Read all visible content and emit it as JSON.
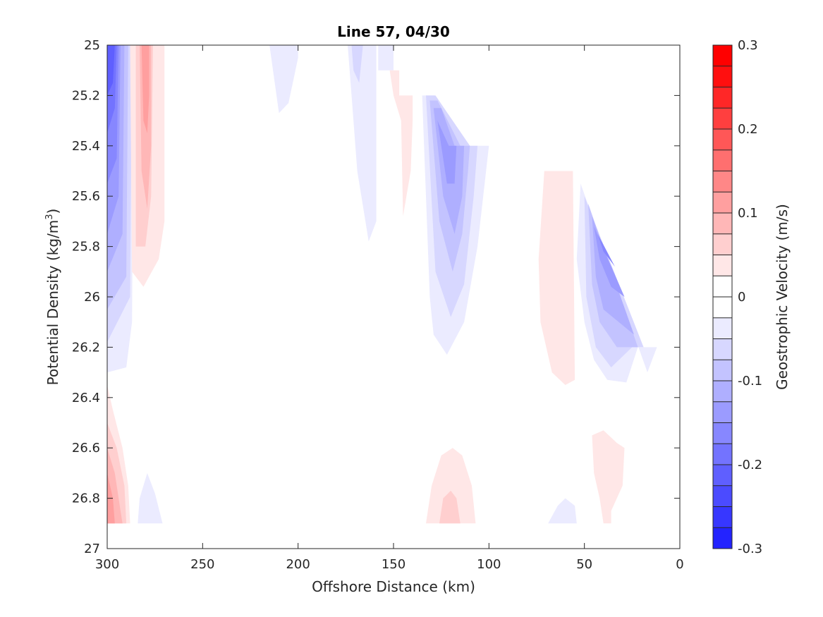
{
  "chart_data": {
    "type": "contour",
    "title": "Line 57, 04/30",
    "xlabel": "Offshore Distance (km)",
    "ylabel_main": "Potential Density (kg/m",
    "ylabel_sup": "3",
    "ylabel_end": ")",
    "xlim": [
      0,
      300
    ],
    "x_reversed": true,
    "ylim": [
      25,
      27
    ],
    "y_reversed": true,
    "xticks": [
      300,
      250,
      200,
      150,
      100,
      50,
      0
    ],
    "yticks": [
      25,
      25.2,
      25.4,
      25.6,
      25.8,
      26,
      26.2,
      26.4,
      26.6,
      26.8,
      27
    ],
    "colorbar": {
      "label": "Geostrophic Velocity (m/s)",
      "clim": [
        -0.3,
        0.3
      ],
      "step": 0.025,
      "ticks": [
        0.3,
        0.2,
        0.1,
        0,
        -0.1,
        -0.2,
        -0.3
      ],
      "tick_labels": [
        "0.3",
        "0.2",
        "0.1",
        "0",
        "-0.1",
        "-0.2",
        "-0.3"
      ]
    },
    "colormap": {
      "negative": "#0000ff",
      "zero": "#ffffff",
      "positive": "#ff0000"
    },
    "features": [
      {
        "name": "nearshore-jet-300km",
        "sign": -1,
        "levels": [
          [
            [
              300,
              25
            ],
            [
              286,
              25
            ],
            [
              287,
              26.1
            ],
            [
              290,
              26.28
            ],
            [
              300,
              26.3
            ]
          ],
          [
            [
              300,
              25
            ],
            [
              287,
              25
            ],
            [
              288,
              26.0
            ],
            [
              300,
              26.18
            ]
          ],
          [
            [
              300,
              25
            ],
            [
              289,
              25
            ],
            [
              290,
              25.92
            ],
            [
              300,
              26.05
            ]
          ],
          [
            [
              300,
              25
            ],
            [
              291,
              25
            ],
            [
              292,
              25.75
            ],
            [
              300,
              25.9
            ]
          ],
          [
            [
              300,
              25
            ],
            [
              293,
              25
            ],
            [
              294,
              25.6
            ],
            [
              300,
              25.75
            ]
          ],
          [
            [
              300,
              25
            ],
            [
              294,
              25
            ],
            [
              295,
              25.45
            ],
            [
              300,
              25.55
            ]
          ],
          [
            [
              300,
              25
            ],
            [
              295,
              25
            ],
            [
              296,
              25.25
            ],
            [
              300,
              25.35
            ]
          ],
          [
            [
              300,
              25
            ],
            [
              296,
              25
            ],
            [
              297,
              25.15
            ],
            [
              300,
              25.2
            ]
          ]
        ]
      },
      {
        "name": "counter-flow-280km",
        "sign": 1,
        "levels": [
          [
            [
              288,
              25
            ],
            [
              287,
              25.9
            ],
            [
              281,
              25.96
            ],
            [
              273,
              25.85
            ],
            [
              270,
              25.7
            ],
            [
              270,
              25
            ]
          ],
          [
            [
              285,
              25
            ],
            [
              285,
              25.8
            ],
            [
              280,
              25.8
            ],
            [
              277,
              25.6
            ],
            [
              276,
              25
            ]
          ],
          [
            [
              283,
              25
            ],
            [
              282,
              25.5
            ],
            [
              279,
              25.65
            ],
            [
              277,
              25.4
            ],
            [
              277,
              25
            ]
          ],
          [
            [
              282,
              25
            ],
            [
              281,
              25.3
            ],
            [
              279,
              25.35
            ],
            [
              278,
              25.2
            ],
            [
              278,
              25
            ]
          ]
        ]
      },
      {
        "name": "offshore-eddy-210km",
        "sign": -1,
        "levels": [
          [
            [
              215,
              25
            ],
            [
              210,
              25.27
            ],
            [
              205,
              25.23
            ],
            [
              200,
              25.05
            ],
            [
              200,
              25
            ]
          ]
        ]
      },
      {
        "name": "offshore-eddy-165km",
        "sign": -1,
        "levels": [
          [
            [
              174,
              25
            ],
            [
              172,
              25.2
            ],
            [
              169,
              25.5
            ],
            [
              163,
              25.78
            ],
            [
              159,
              25.7
            ],
            [
              159,
              25
            ],
            [
              150,
              25
            ],
            [
              150,
              25.1
            ],
            [
              158,
              25.1
            ],
            [
              158,
              25
            ]
          ],
          [
            [
              172,
              25
            ],
            [
              171,
              25.1
            ],
            [
              168,
              25.15
            ],
            [
              166,
              25
            ]
          ]
        ]
      },
      {
        "name": "small-positive-145km",
        "sign": 1,
        "levels": [
          [
            [
              152,
              25.1
            ],
            [
              150,
              25.2
            ],
            [
              146,
              25.3
            ],
            [
              145,
              25.68
            ],
            [
              141,
              25.5
            ],
            [
              140,
              25.3
            ],
            [
              140,
              25.2
            ],
            [
              147,
              25.2
            ],
            [
              147,
              25.1
            ]
          ]
        ]
      },
      {
        "name": "jet-120km",
        "sign": -1,
        "levels": [
          [
            [
              135,
              25.2
            ],
            [
              131,
              26.0
            ],
            [
              129,
              26.15
            ],
            [
              122,
              26.23
            ],
            [
              113,
              26.1
            ],
            [
              106,
              25.8
            ],
            [
              100,
              25.4
            ],
            [
              110,
              25.4
            ],
            [
              129,
              25.2
            ]
          ],
          [
            [
              133,
              25.2
            ],
            [
              128,
              25.9
            ],
            [
              120,
              26.08
            ],
            [
              113,
              25.95
            ],
            [
              108,
              25.6
            ],
            [
              106,
              25.4
            ],
            [
              110,
              25.4
            ],
            [
              128,
              25.2
            ]
          ],
          [
            [
              131,
              25.22
            ],
            [
              126,
              25.7
            ],
            [
              119,
              25.9
            ],
            [
              114,
              25.75
            ],
            [
              111,
              25.5
            ],
            [
              110,
              25.4
            ],
            [
              115,
              25.4
            ],
            [
              127,
              25.22
            ]
          ],
          [
            [
              129,
              25.25
            ],
            [
              124,
              25.6
            ],
            [
              118,
              25.75
            ],
            [
              114,
              25.6
            ],
            [
              113,
              25.4
            ],
            [
              118,
              25.4
            ],
            [
              125,
              25.25
            ]
          ],
          [
            [
              127,
              25.3
            ],
            [
              122,
              25.55
            ],
            [
              118,
              25.55
            ],
            [
              117,
              25.4
            ],
            [
              121,
              25.4
            ]
          ]
        ]
      },
      {
        "name": "positive-65km",
        "sign": 1,
        "levels": [
          [
            [
              71,
              25.5
            ],
            [
              74,
              25.85
            ],
            [
              73,
              26.1
            ],
            [
              67,
              26.3
            ],
            [
              60,
              26.35
            ],
            [
              55,
              26.33
            ],
            [
              56,
              25.5
            ]
          ]
        ]
      },
      {
        "name": "jet-35km",
        "sign": -1,
        "levels": [
          [
            [
              52,
              25.55
            ],
            [
              54,
              25.85
            ],
            [
              50,
              26.1
            ],
            [
              45,
              26.25
            ],
            [
              38,
              26.33
            ],
            [
              28,
              26.34
            ],
            [
              22,
              26.2
            ],
            [
              12,
              26.2
            ],
            [
              17,
              26.3
            ]
          ],
          [
            [
              50,
              25.6
            ],
            [
              49,
              26.0
            ],
            [
              44,
              26.2
            ],
            [
              36,
              26.28
            ],
            [
              25,
              26.2
            ],
            [
              19,
              26.2
            ]
          ],
          [
            [
              48,
              25.63
            ],
            [
              46,
              25.95
            ],
            [
              42,
              26.1
            ],
            [
              33,
              26.2
            ],
            [
              22,
              26.2
            ]
          ],
          [
            [
              46,
              25.68
            ],
            [
              44,
              25.92
            ],
            [
              40,
              26.05
            ],
            [
              32,
              26.1
            ],
            [
              24,
              26.15
            ]
          ],
          [
            [
              45,
              25.72
            ],
            [
              42,
              25.85
            ],
            [
              36,
              25.96
            ],
            [
              29,
              26.0
            ]
          ],
          [
            [
              43,
              25.75
            ],
            [
              40,
              25.82
            ],
            [
              34,
              25.88
            ]
          ]
        ]
      },
      {
        "name": "deep-positive-300km",
        "sign": 1,
        "levels": [
          [
            [
              300,
              26.35
            ],
            [
              297,
              26.45
            ],
            [
              292,
              26.6
            ],
            [
              289,
              26.75
            ],
            [
              288,
              26.9
            ],
            [
              300,
              26.9
            ]
          ],
          [
            [
              300,
              26.5
            ],
            [
              295,
              26.6
            ],
            [
              291,
              26.75
            ],
            [
              290,
              26.9
            ],
            [
              300,
              26.9
            ]
          ],
          [
            [
              300,
              26.6
            ],
            [
              296,
              26.7
            ],
            [
              293,
              26.85
            ],
            [
              292,
              26.9
            ],
            [
              300,
              26.9
            ]
          ],
          [
            [
              300,
              26.7
            ],
            [
              297,
              26.8
            ],
            [
              296,
              26.9
            ],
            [
              300,
              26.9
            ]
          ]
        ]
      },
      {
        "name": "deep-negative-275km",
        "sign": -1,
        "levels": [
          [
            [
              284,
              26.9
            ],
            [
              283,
              26.8
            ],
            [
              279,
              26.7
            ],
            [
              275,
              26.78
            ],
            [
              271,
              26.9
            ]
          ]
        ]
      },
      {
        "name": "deep-positive-120km",
        "sign": 1,
        "levels": [
          [
            [
              133,
              26.9
            ],
            [
              130,
              26.75
            ],
            [
              125,
              26.63
            ],
            [
              119,
              26.6
            ],
            [
              114,
              26.63
            ],
            [
              109,
              26.75
            ],
            [
              107,
              26.9
            ]
          ],
          [
            [
              126,
              26.9
            ],
            [
              124,
              26.8
            ],
            [
              120,
              26.77
            ],
            [
              117,
              26.8
            ],
            [
              115,
              26.9
            ]
          ]
        ]
      },
      {
        "name": "deep-negative-60km",
        "sign": -1,
        "levels": [
          [
            [
              69,
              26.9
            ],
            [
              64,
              26.83
            ],
            [
              60,
              26.8
            ],
            [
              55,
              26.83
            ],
            [
              54,
              26.9
            ]
          ]
        ]
      },
      {
        "name": "deep-positive-40km",
        "sign": 1,
        "levels": [
          [
            [
              46,
              26.55
            ],
            [
              40,
              26.53
            ],
            [
              33,
              26.58
            ],
            [
              29,
              26.6
            ],
            [
              30,
              26.75
            ],
            [
              36,
              26.85
            ],
            [
              36,
              26.9
            ],
            [
              40,
              26.9
            ],
            [
              42,
              26.8
            ],
            [
              45,
              26.7
            ]
          ]
        ]
      }
    ]
  }
}
